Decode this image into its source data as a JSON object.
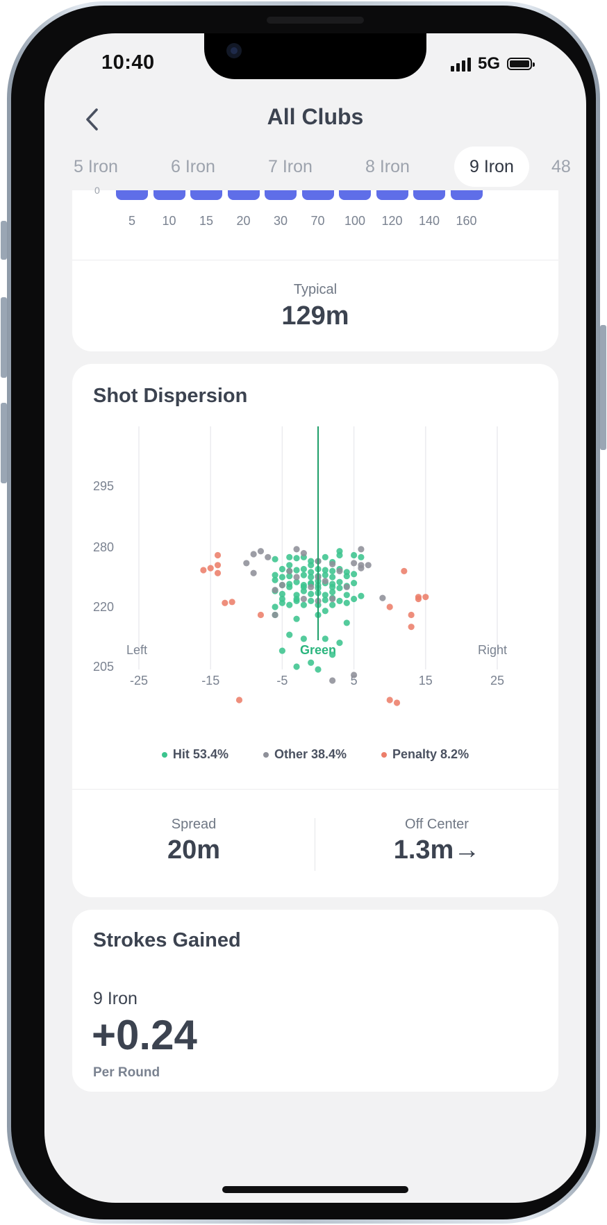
{
  "status_bar": {
    "time": "10:40",
    "network": "5G"
  },
  "header": {
    "title": "All Clubs",
    "back_icon": "chevron-left-icon"
  },
  "tabs": [
    {
      "label": "5 Iron",
      "active": false
    },
    {
      "label": "6 Iron",
      "active": false
    },
    {
      "label": "7 Iron",
      "active": false
    },
    {
      "label": "8 Iron",
      "active": false
    },
    {
      "label": "9 Iron",
      "active": true
    },
    {
      "label": "48",
      "active": false
    }
  ],
  "distance_card": {
    "axis_zero": "0",
    "bar_labels": [
      "5",
      "10",
      "15",
      "20",
      "30",
      "70",
      "100",
      "120",
      "140",
      "160"
    ],
    "typical_label": "Typical",
    "typical_value": "129m",
    "bar_color": "#5f6ee8"
  },
  "dispersion_card": {
    "title": "Shot Dispersion",
    "spread_label": "Spread",
    "spread_value": "20m",
    "offcenter_label": "Off Center",
    "offcenter_value": "1.3m→"
  },
  "chart_data": {
    "type": "scatter",
    "title": "Shot Dispersion",
    "x_ticks": [
      "-25",
      "-15",
      "-5",
      "5",
      "15",
      "25"
    ],
    "y_ticks": [
      "295",
      "280",
      "220",
      "205"
    ],
    "xlim": [
      -25,
      25
    ],
    "direction_labels": {
      "left": "Left",
      "center": "Green",
      "right": "Right"
    },
    "center_line_x": 0,
    "grid": true,
    "legend_position": "bottom",
    "series": [
      {
        "name": "Hit 53.4%",
        "color": "#3cc48e",
        "points": [
          [
            -6,
            268
          ],
          [
            -4,
            270
          ],
          [
            -3,
            269
          ],
          [
            -2,
            270
          ],
          [
            -1,
            266
          ],
          [
            1,
            270
          ],
          [
            3,
            272
          ],
          [
            3,
            276
          ],
          [
            5,
            272
          ],
          [
            6,
            270
          ],
          [
            2,
            265
          ],
          [
            0,
            266
          ],
          [
            -5,
            258
          ],
          [
            -4,
            256
          ],
          [
            -3,
            257
          ],
          [
            -2,
            258
          ],
          [
            -1,
            255
          ],
          [
            0,
            258
          ],
          [
            1,
            257
          ],
          [
            2,
            256
          ],
          [
            3,
            258
          ],
          [
            4,
            255
          ],
          [
            -6,
            252
          ],
          [
            -5,
            250
          ],
          [
            -4,
            251
          ],
          [
            -2,
            252
          ],
          [
            -1,
            250
          ],
          [
            0,
            251
          ],
          [
            1,
            252
          ],
          [
            2,
            250
          ],
          [
            4,
            251
          ],
          [
            5,
            253
          ],
          [
            -3,
            245
          ],
          [
            -1,
            244
          ],
          [
            0,
            246
          ],
          [
            1,
            244
          ],
          [
            3,
            245
          ],
          [
            -5,
            242
          ],
          [
            -4,
            243
          ],
          [
            -2,
            242
          ],
          [
            -1,
            243
          ],
          [
            0,
            242
          ],
          [
            2,
            243
          ],
          [
            4,
            241
          ],
          [
            5,
            244
          ],
          [
            -6,
            247
          ],
          [
            -4,
            240
          ],
          [
            -2,
            240
          ],
          [
            0,
            239
          ],
          [
            2,
            240
          ],
          [
            3,
            239
          ],
          [
            -6,
            236
          ],
          [
            -5,
            233
          ],
          [
            -3,
            232
          ],
          [
            -1,
            233
          ],
          [
            1,
            232
          ],
          [
            2,
            235
          ],
          [
            4,
            232
          ],
          [
            -5,
            228
          ],
          [
            -3,
            226
          ],
          [
            -1,
            226
          ],
          [
            1,
            227
          ],
          [
            3,
            226
          ],
          [
            -4,
            222
          ],
          [
            -2,
            222
          ],
          [
            0,
            222
          ],
          [
            2,
            222
          ],
          [
            -6,
            218
          ],
          [
            -3,
            217
          ],
          [
            0,
            218
          ],
          [
            1,
            219
          ],
          [
            -4,
            213
          ],
          [
            -2,
            212
          ],
          [
            1,
            212
          ],
          [
            3,
            211
          ],
          [
            4,
            216
          ],
          [
            -5,
            209
          ],
          [
            -3,
            205
          ],
          [
            -1,
            206
          ],
          [
            0,
            204
          ],
          [
            2,
            208
          ],
          [
            -6,
            220
          ],
          [
            -5,
            224
          ],
          [
            -3,
            228
          ],
          [
            -2,
            236
          ],
          [
            0,
            234
          ],
          [
            2,
            229
          ],
          [
            4,
            224
          ],
          [
            5,
            228
          ],
          [
            6,
            231
          ],
          [
            -4,
            262
          ],
          [
            -1,
            262
          ]
        ]
      },
      {
        "name": "Other 38.4%",
        "color": "#8e9099",
        "points": [
          [
            -8,
            276
          ],
          [
            -9,
            273
          ],
          [
            -10,
            264
          ],
          [
            -9,
            254
          ],
          [
            -7,
            270
          ],
          [
            -3,
            278
          ],
          [
            -2,
            274
          ],
          [
            0,
            266
          ],
          [
            2,
            263
          ],
          [
            5,
            264
          ],
          [
            6,
            262
          ],
          [
            6,
            259
          ],
          [
            7,
            262
          ],
          [
            9,
            229
          ],
          [
            6,
            278
          ],
          [
            -6,
            237
          ],
          [
            -4,
            256
          ],
          [
            -3,
            250
          ],
          [
            -1,
            240
          ],
          [
            0,
            250
          ],
          [
            1,
            246
          ],
          [
            2,
            228
          ],
          [
            -2,
            228
          ],
          [
            -5,
            242
          ],
          [
            3,
            256
          ],
          [
            4,
            240
          ],
          [
            -6,
            218
          ],
          [
            0,
            226
          ],
          [
            2,
            200
          ],
          [
            5,
            202
          ]
        ]
      },
      {
        "name": "Penalty 8.2%",
        "color": "#ec7e6a",
        "points": [
          [
            -14,
            272
          ],
          [
            -14,
            262
          ],
          [
            -15,
            259
          ],
          [
            -16,
            257
          ],
          [
            -14,
            254
          ],
          [
            -12,
            225
          ],
          [
            -13,
            224
          ],
          [
            -11,
            193
          ],
          [
            -8,
            218
          ],
          [
            12,
            256
          ],
          [
            14,
            230
          ],
          [
            15,
            230
          ],
          [
            13,
            218
          ],
          [
            13,
            215
          ],
          [
            10,
            220
          ],
          [
            10,
            193
          ],
          [
            11,
            192
          ],
          [
            14,
            228
          ]
        ]
      }
    ]
  }
}
